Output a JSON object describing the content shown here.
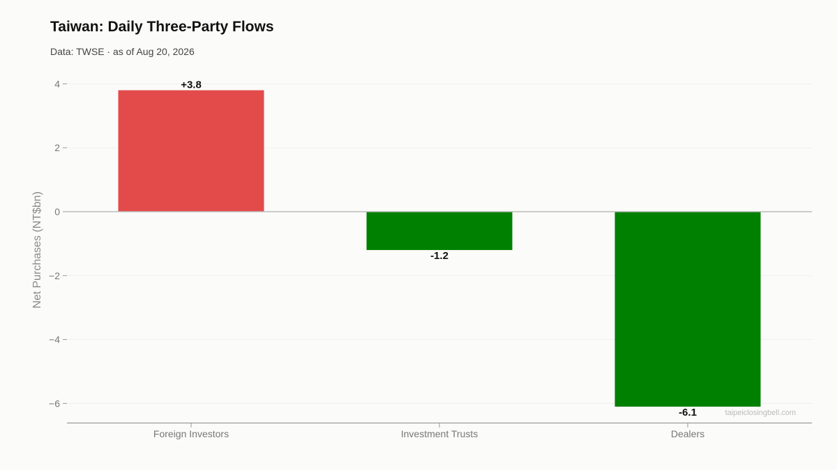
{
  "header": {
    "title": "Taiwan: Daily Three-Party Flows",
    "subtitle": "Data: TWSE · as of Aug 20, 2026"
  },
  "chart_data": {
    "type": "bar",
    "categories": [
      "Foreign Investors",
      "Investment Trusts",
      "Dealers"
    ],
    "values": [
      3.8,
      -1.2,
      -6.1
    ],
    "data_labels": [
      "+3.8",
      "-1.2",
      "-6.1"
    ],
    "ylabel": "Net Purchases (NT$bn)",
    "xlabel": "",
    "yticks": [
      4,
      2,
      0,
      -2,
      -4,
      -6
    ],
    "ytick_labels": [
      "4",
      "2",
      "0",
      "−2",
      "−4",
      "−6"
    ],
    "ylim": [
      -6.6,
      4.0
    ],
    "grid": "horizontal",
    "colors": {
      "positive": "#e34b4b",
      "negative": "#008000"
    }
  },
  "watermark": "taipeiclosingbell.com"
}
